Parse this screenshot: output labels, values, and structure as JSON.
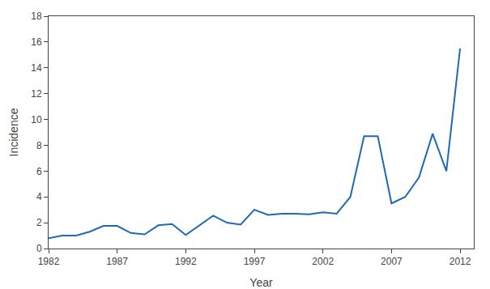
{
  "chart_data": {
    "type": "line",
    "x": [
      1982,
      1983,
      1984,
      1985,
      1986,
      1987,
      1988,
      1989,
      1990,
      1991,
      1992,
      1993,
      1994,
      1995,
      1996,
      1997,
      1998,
      1999,
      2000,
      2001,
      2002,
      2003,
      2004,
      2005,
      2006,
      2007,
      2008,
      2009,
      2010,
      2011,
      2012
    ],
    "values": [
      0.8,
      1.0,
      1.0,
      1.3,
      1.75,
      1.75,
      1.2,
      1.1,
      1.8,
      1.9,
      1.05,
      1.8,
      2.55,
      2.0,
      1.85,
      3.0,
      2.6,
      2.7,
      2.7,
      2.65,
      2.8,
      2.7,
      4.0,
      8.7,
      8.7,
      3.5,
      4.0,
      5.5,
      8.9,
      6.0,
      15.5
    ],
    "color": "#1f6ab5",
    "xlabel": "Year",
    "ylabel": "Incidence",
    "xlim": [
      1982,
      2013
    ],
    "ylim": [
      0,
      18
    ],
    "xticks": [
      1982,
      1987,
      1992,
      1997,
      2002,
      2007,
      2012
    ],
    "yticks": [
      0,
      2,
      4,
      6,
      8,
      10,
      12,
      14,
      16,
      18
    ],
    "grid": false
  }
}
